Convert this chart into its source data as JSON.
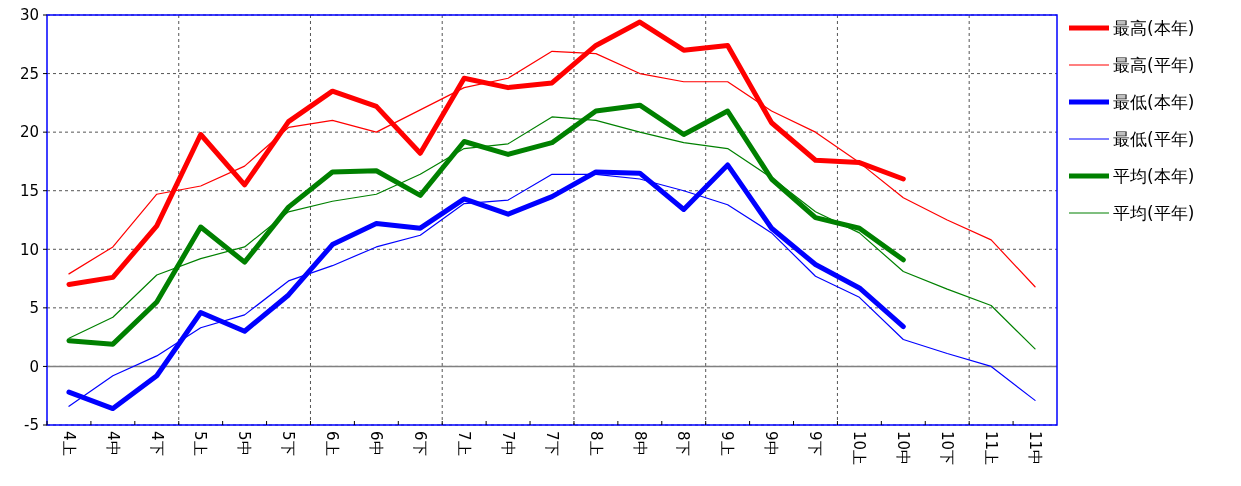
{
  "chart_data": {
    "type": "line",
    "categories": [
      "4上",
      "4中",
      "4下",
      "5上",
      "5中",
      "5下",
      "6上",
      "6中",
      "6下",
      "7上",
      "7中",
      "7下",
      "8上",
      "8中",
      "8下",
      "9上",
      "9中",
      "9下",
      "10上",
      "10中",
      "10下",
      "11上",
      "11中"
    ],
    "series": [
      {
        "name": "最高(本年)",
        "color": "#ff0000",
        "values": [
          7.0,
          7.6,
          12.0,
          19.8,
          15.5,
          20.9,
          23.5,
          22.2,
          18.2,
          24.6,
          23.8,
          24.2,
          27.4,
          29.4,
          27.0,
          27.4,
          20.8,
          17.6,
          17.4,
          16.0,
          null,
          null,
          null
        ]
      },
      {
        "name": "最高(平年)",
        "color": "#ff0000",
        "values": [
          7.9,
          10.2,
          14.7,
          15.4,
          17.1,
          20.4,
          21.0,
          20.0,
          21.9,
          23.8,
          24.6,
          26.9,
          26.7,
          25.0,
          24.3,
          24.3,
          21.8,
          20.0,
          17.4,
          14.4,
          12.5,
          10.8,
          6.8
        ]
      },
      {
        "name": "最低(本年)",
        "color": "#0000ff",
        "values": [
          -2.2,
          -3.6,
          -0.8,
          4.6,
          3.0,
          6.1,
          10.4,
          12.2,
          11.8,
          14.3,
          13.0,
          14.5,
          16.6,
          16.5,
          13.4,
          17.2,
          11.8,
          8.7,
          6.7,
          3.4,
          null,
          null,
          null
        ]
      },
      {
        "name": "最低(平年)",
        "color": "#0000ff",
        "values": [
          -3.4,
          -0.8,
          0.9,
          3.3,
          4.4,
          7.3,
          8.6,
          10.2,
          11.2,
          13.9,
          14.2,
          16.4,
          16.4,
          16.0,
          15.0,
          13.8,
          11.4,
          7.7,
          5.9,
          2.3,
          1.1,
          0.0,
          -2.9
        ]
      },
      {
        "name": "平均(本年)",
        "color": "#008000",
        "values": [
          2.2,
          1.9,
          5.5,
          11.9,
          8.9,
          13.6,
          16.6,
          16.7,
          14.6,
          19.2,
          18.1,
          19.1,
          21.8,
          22.3,
          19.8,
          21.8,
          16.0,
          12.7,
          11.8,
          9.1,
          null,
          null,
          null
        ]
      },
      {
        "name": "平均(平年)",
        "color": "#008000",
        "values": [
          2.4,
          4.2,
          7.8,
          9.2,
          10.2,
          13.2,
          14.1,
          14.7,
          16.4,
          18.6,
          19.0,
          21.3,
          21.0,
          20.0,
          19.1,
          18.6,
          16.1,
          13.2,
          11.4,
          8.1,
          6.6,
          5.2,
          1.5
        ]
      }
    ],
    "ylim": [
      -5,
      30
    ],
    "yticks": [
      -5,
      0,
      5,
      10,
      15,
      20,
      25,
      30
    ],
    "ref_lines": [
      {
        "axis": "y",
        "value": 0,
        "color": "#808080"
      }
    ],
    "grid": true,
    "legend": "right",
    "marker": "none",
    "line_style": "solid"
  }
}
